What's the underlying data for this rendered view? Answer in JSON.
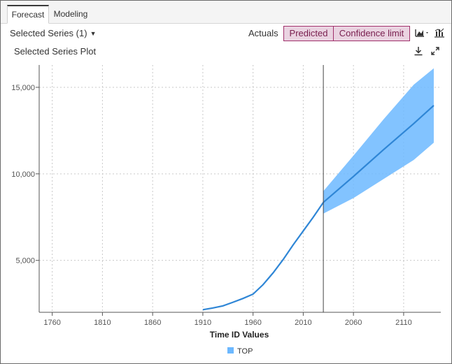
{
  "tabs": [
    {
      "label": "Forecast",
      "active": true
    },
    {
      "label": "Modeling",
      "active": false
    }
  ],
  "toolbar": {
    "series_select_label": "Selected Series (1)",
    "actuals_label": "Actuals",
    "predicted_label": "Predicted",
    "confidence_label": "Confidence limit",
    "chart_type_icon": "line-chart-icon",
    "chart_type_dropdown_icon": "chevron-down-icon",
    "bar_chart_icon": "bar-chart-icon",
    "download_icon": "download-icon",
    "expand_icon": "expand-icon"
  },
  "plot": {
    "title": "Selected Series Plot"
  },
  "colors": {
    "line": "#2f86d6",
    "band": "#6cb8ff",
    "pill_bg": "#ead3e1",
    "pill_border": "#a0306b"
  },
  "chart_data": {
    "type": "line",
    "xlabel": "Time ID Values",
    "ylabel": "",
    "x_ticks": [
      1760,
      1810,
      1860,
      1910,
      1960,
      2010,
      2060,
      2110
    ],
    "y_ticks": [
      5000,
      10000,
      15000
    ],
    "y_tick_labels": [
      "5,000",
      "10,000",
      "15,000"
    ],
    "xlim": [
      1747,
      2147
    ],
    "ylim": [
      2000,
      16290
    ],
    "grid": true,
    "legend": [
      {
        "name": "TOP",
        "color": "#6cb8ff"
      }
    ],
    "forecast_start": 2030,
    "series": [
      {
        "name": "TOP",
        "x": [
          1910,
          1920,
          1930,
          1940,
          1950,
          1960,
          1970,
          1980,
          1990,
          2000,
          2010,
          2020,
          2030
        ],
        "y": [
          2150,
          2250,
          2370,
          2580,
          2800,
          3050,
          3600,
          4280,
          5050,
          5900,
          6700,
          7500,
          8350
        ]
      }
    ],
    "forecast": {
      "x": [
        2030,
        2060,
        2090,
        2120,
        2140
      ],
      "y": [
        8350,
        9850,
        11400,
        12900,
        13950
      ],
      "lower": [
        7700,
        8600,
        9700,
        10800,
        11800
      ],
      "upper": [
        9000,
        11050,
        13150,
        15150,
        16100
      ]
    }
  }
}
